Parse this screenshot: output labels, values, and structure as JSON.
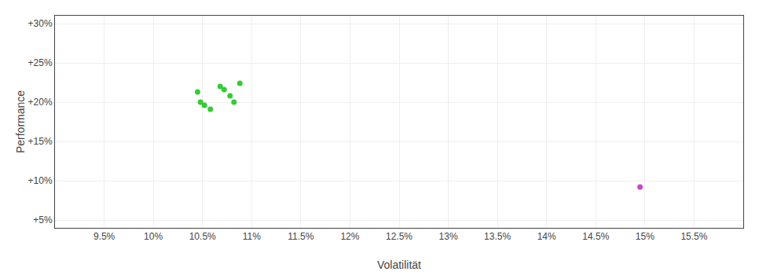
{
  "chart_data": {
    "type": "scatter",
    "xlabel": "Volatilität",
    "ylabel": "Performance",
    "xlim": [
      0.09,
      0.16
    ],
    "ylim": [
      0.04,
      0.31
    ],
    "xticks": [
      {
        "value": 0.095,
        "label": "9.5%"
      },
      {
        "value": 0.1,
        "label": "10%"
      },
      {
        "value": 0.105,
        "label": "10.5%"
      },
      {
        "value": 0.11,
        "label": "11%"
      },
      {
        "value": 0.115,
        "label": "11.5%"
      },
      {
        "value": 0.12,
        "label": "12%"
      },
      {
        "value": 0.125,
        "label": "12.5%"
      },
      {
        "value": 0.13,
        "label": "13%"
      },
      {
        "value": 0.135,
        "label": "13.5%"
      },
      {
        "value": 0.14,
        "label": "14%"
      },
      {
        "value": 0.145,
        "label": "14.5%"
      },
      {
        "value": 0.15,
        "label": "15%"
      },
      {
        "value": 0.155,
        "label": "15.5%"
      }
    ],
    "yticks": [
      {
        "value": 0.05,
        "label": "+5%"
      },
      {
        "value": 0.1,
        "label": "+10%"
      },
      {
        "value": 0.15,
        "label": "+15%"
      },
      {
        "value": 0.2,
        "label": "+20%"
      },
      {
        "value": 0.25,
        "label": "+25%"
      },
      {
        "value": 0.3,
        "label": "+30%"
      }
    ],
    "grid": true,
    "series": [
      {
        "color": "#33cc33",
        "x": [
          0.1045,
          0.1048,
          0.1052,
          0.1058,
          0.1068,
          0.1072,
          0.1078,
          0.1082,
          0.1088
        ],
        "values": [
          0.213,
          0.2,
          0.196,
          0.191,
          0.22,
          0.216,
          0.208,
          0.2,
          0.224
        ]
      },
      {
        "color": "#cc44cc",
        "x": [
          0.1495
        ],
        "values": [
          0.092
        ]
      }
    ]
  }
}
